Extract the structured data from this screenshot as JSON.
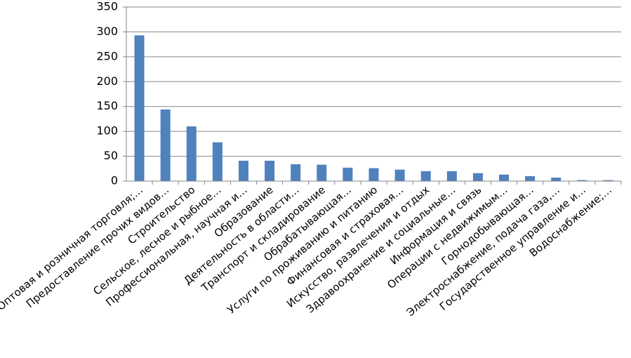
{
  "chart_data": {
    "type": "bar",
    "categories": [
      "Оптовая и розничная торговля;…",
      "Предоставление прочих видов…",
      "Строительство",
      "Сельское, лесное и рыбное…",
      "Профессиональная, научная и…",
      "Образование",
      "Деятельность в области…",
      "Транспорт и складирование",
      "Обрабатывающая…",
      "Услуги по проживанию и питанию",
      "Финансовая и страховая…",
      "Искусство, развлечения и отдых",
      "Здравоохранение и социальные…",
      "Информация и связь",
      "Операции с недвижимым…",
      "Горнодобывающая…",
      "Электроснабжение, подача газа,…",
      "Государственное управление и…",
      "Водоснабжение;…"
    ],
    "values": [
      293,
      144,
      110,
      78,
      41,
      41,
      34,
      33,
      27,
      26,
      23,
      20,
      20,
      16,
      13,
      10,
      7,
      2,
      2
    ],
    "color": "#4f81bd",
    "ylim": [
      0,
      350
    ],
    "yticks": [
      0,
      50,
      100,
      150,
      200,
      250,
      300,
      350
    ],
    "grid": true
  }
}
